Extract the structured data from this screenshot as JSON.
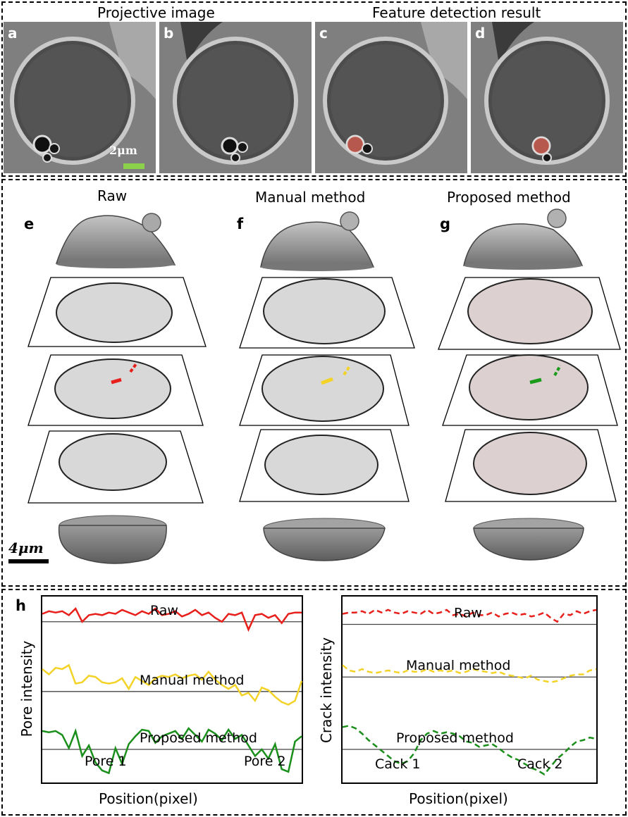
{
  "top_panel": {
    "title_left": "Projective image",
    "title_right": "Feature detection result",
    "labels": [
      "a",
      "b",
      "c",
      "d"
    ],
    "scale_bar": "2μm",
    "scale_bar_color": "#8bd14a",
    "highlight_color": "#e06a5c"
  },
  "middle_panel": {
    "columns": [
      {
        "letter": "e",
        "title": "Raw"
      },
      {
        "letter": "f",
        "title": "Manual method"
      },
      {
        "letter": "g",
        "title": "Proposed method"
      }
    ],
    "scale_bar": "4μm",
    "marker_colors": {
      "raw": "#e8201c",
      "manual": "#f3d327",
      "proposed": "#1b9b1b"
    }
  },
  "bottom_panel": {
    "letter": "h",
    "chart_data": [
      {
        "type": "line",
        "ylabel": "Pore intensity",
        "xlabel": "Position(pixel)",
        "annotations": [
          "Pore 1",
          "Pore 2"
        ],
        "series": [
          {
            "name": "Raw",
            "color": "#e8201c",
            "style": "solid",
            "values": [
              0.94,
              0.96,
              0.95,
              0.96,
              0.93,
              0.98,
              0.88,
              0.93,
              0.94,
              0.93,
              0.95,
              0.94,
              0.97,
              0.95,
              0.93,
              0.96,
              0.94,
              0.98,
              0.93,
              0.94,
              0.96,
              0.92,
              0.94,
              0.97,
              0.93,
              0.95,
              0.91,
              0.88,
              0.94,
              0.93,
              0.95,
              0.82,
              0.93,
              0.94,
              0.91,
              0.93,
              0.87,
              0.94,
              0.95,
              0.95
            ]
          },
          {
            "name": "Manual method",
            "color": "#f3d327",
            "style": "solid",
            "values": [
              0.52,
              0.48,
              0.53,
              0.52,
              0.55,
              0.41,
              0.42,
              0.47,
              0.46,
              0.42,
              0.41,
              0.42,
              0.45,
              0.37,
              0.46,
              0.43,
              0.4,
              0.45,
              0.47,
              0.46,
              0.48,
              0.45,
              0.47,
              0.48,
              0.44,
              0.5,
              0.44,
              0.4,
              0.37,
              0.4,
              0.32,
              0.34,
              0.28,
              0.38,
              0.36,
              0.31,
              0.27,
              0.25,
              0.28,
              0.43
            ]
          },
          {
            "name": "Proposed method",
            "color": "#1b8f1b",
            "style": "solid",
            "values": [
              0.05,
              0.04,
              0.05,
              0.02,
              -0.08,
              0.05,
              -0.14,
              -0.06,
              -0.19,
              -0.25,
              -0.27,
              -0.08,
              -0.2,
              -0.05,
              0.01,
              0.06,
              0.05,
              -0.04,
              0.01,
              0.03,
              0.05,
              -0.01,
              0.07,
              0.02,
              -0.03,
              0.06,
              0.03,
              -0.02,
              0.06,
              -0.01,
              0.02,
              -0.06,
              -0.14,
              -0.09,
              -0.16,
              -0.05,
              -0.24,
              -0.26,
              -0.03,
              0.01
            ]
          }
        ],
        "baselines": [
          0.88,
          0.35,
          -0.09
        ],
        "ylim": [
          -0.32,
          1.05
        ]
      },
      {
        "type": "line",
        "ylabel": "Crack intensity",
        "xlabel": "Position(pixel)",
        "annotations": [
          "Cack 1",
          "Cack 2"
        ],
        "series": [
          {
            "name": "Raw",
            "color": "#e8201c",
            "style": "dashed",
            "values": [
              0.94,
              0.95,
              0.95,
              0.96,
              0.94,
              0.97,
              0.95,
              0.97,
              0.95,
              0.94,
              0.96,
              0.95,
              0.94,
              0.97,
              0.94,
              0.95,
              0.97,
              0.93,
              0.94,
              0.92,
              0.95,
              0.93,
              0.93,
              0.95,
              0.92,
              0.94,
              0.95,
              0.93,
              0.94,
              0.92,
              0.93,
              0.95,
              0.91,
              0.88,
              0.94,
              0.93,
              0.96,
              0.94,
              0.96,
              0.97
            ]
          },
          {
            "name": "Manual method",
            "color": "#f3d327",
            "style": "dashed",
            "values": [
              0.55,
              0.51,
              0.5,
              0.52,
              0.5,
              0.49,
              0.5,
              0.51,
              0.5,
              0.49,
              0.51,
              0.5,
              0.5,
              0.52,
              0.5,
              0.51,
              0.5,
              0.51,
              0.49,
              0.5,
              0.52,
              0.51,
              0.5,
              0.49,
              0.5,
              0.48,
              0.47,
              0.46,
              0.45,
              0.47,
              0.44,
              0.43,
              0.42,
              0.43,
              0.45,
              0.47,
              0.48,
              0.48,
              0.51,
              0.52
            ]
          },
          {
            "name": "Proposed method",
            "color": "#1b8f1b",
            "style": "dashed",
            "values": [
              0.08,
              0.09,
              0.07,
              0.03,
              -0.02,
              -0.06,
              -0.1,
              -0.14,
              -0.18,
              -0.2,
              -0.18,
              -0.12,
              -0.02,
              0.03,
              0.05,
              0.03,
              0.04,
              0.03,
              0.01,
              -0.03,
              -0.04,
              -0.07,
              -0.06,
              -0.05,
              -0.08,
              -0.12,
              -0.15,
              -0.17,
              -0.2,
              -0.23,
              -0.25,
              -0.28,
              -0.22,
              -0.16,
              -0.12,
              -0.07,
              -0.03,
              -0.02,
              0.0,
              -0.01
            ]
          }
        ],
        "baselines": [
          0.86,
          0.46,
          -0.09
        ],
        "ylim": [
          -0.32,
          1.05
        ]
      }
    ]
  }
}
